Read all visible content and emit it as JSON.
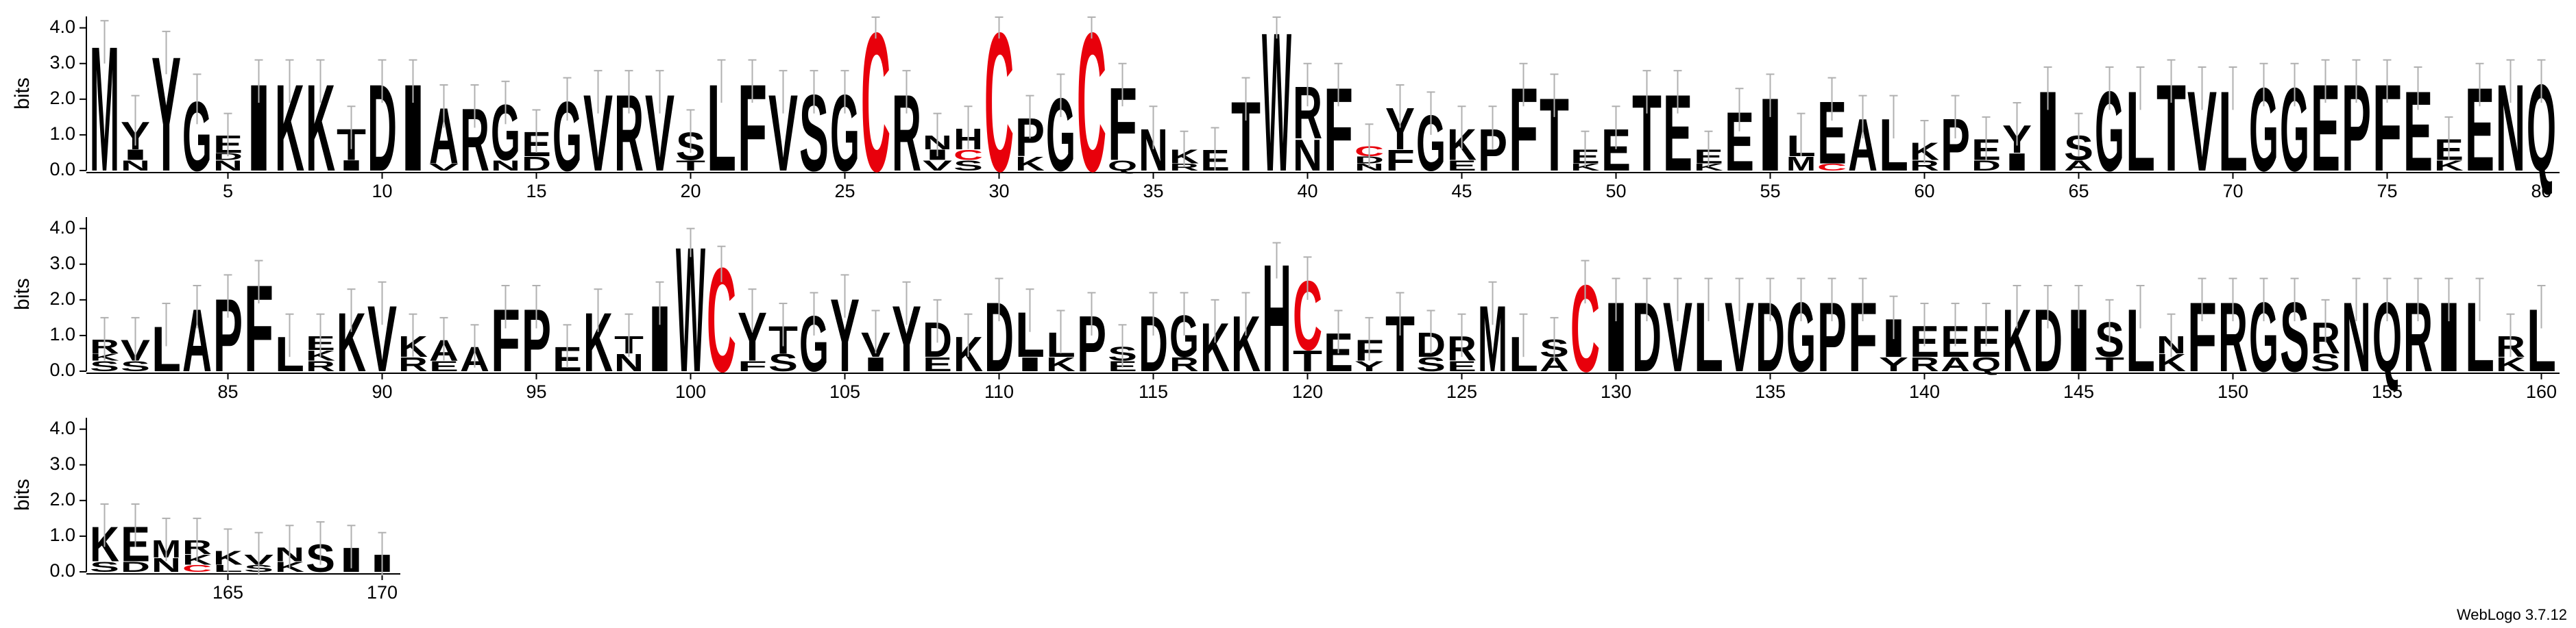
{
  "chart_data": {
    "type": "logo",
    "ylabel": "bits",
    "footer": "WebLogo 3.7.12",
    "ylim": [
      0,
      4.32
    ],
    "yticks": [
      {
        "value": 0,
        "label": "0.0"
      },
      {
        "value": 1,
        "label": "1.0"
      },
      {
        "value": 2,
        "label": "2.0"
      },
      {
        "value": 3,
        "label": "3.0"
      },
      {
        "value": 4,
        "label": "4.0"
      }
    ],
    "xticks": [
      5,
      10,
      15,
      20,
      25,
      30,
      35,
      40,
      45,
      50,
      55,
      60,
      65,
      70,
      75,
      80,
      85,
      90,
      95,
      100,
      105,
      110,
      115,
      120,
      125,
      130,
      135,
      140,
      145,
      150,
      155,
      160,
      165,
      170
    ],
    "color": "#000000",
    "highlight": {
      "letter": "C",
      "color": "#e8000b"
    },
    "error_color": "#b0b0b0",
    "stacks": [
      [
        [
          "M",
          3.6
        ]
      ],
      [
        [
          "N",
          0.3
        ],
        [
          "I",
          0.3
        ],
        [
          "Y",
          0.8
        ]
      ],
      [
        [
          "Y",
          3.3
        ]
      ],
      [
        [
          "G",
          2.0
        ]
      ],
      [
        [
          "N",
          0.3
        ],
        [
          "D",
          0.2
        ],
        [
          "E",
          0.5
        ]
      ],
      [
        [
          "I",
          2.5
        ]
      ],
      [
        [
          "K",
          2.5
        ]
      ],
      [
        [
          "K",
          2.5
        ]
      ],
      [
        [
          "I",
          0.3
        ],
        [
          "T",
          0.9
        ]
      ],
      [
        [
          "D",
          2.5
        ]
      ],
      [
        [
          "I",
          2.5
        ]
      ],
      [
        [
          "V",
          0.2
        ],
        [
          "A",
          1.6
        ]
      ],
      [
        [
          "R",
          1.8
        ]
      ],
      [
        [
          "N",
          0.3
        ],
        [
          "G",
          1.6
        ]
      ],
      [
        [
          "D",
          0.4
        ],
        [
          "E",
          0.7
        ]
      ],
      [
        [
          "G",
          2.0
        ]
      ],
      [
        [
          "V",
          2.2
        ]
      ],
      [
        [
          "R",
          2.2
        ]
      ],
      [
        [
          "V",
          2.2
        ]
      ],
      [
        [
          "T",
          0.3
        ],
        [
          "S",
          0.8
        ]
      ],
      [
        [
          "L",
          2.5
        ]
      ],
      [
        [
          "F",
          2.5
        ]
      ],
      [
        [
          "V",
          2.2
        ]
      ],
      [
        [
          "S",
          2.2
        ]
      ],
      [
        [
          "G",
          2.2
        ]
      ],
      [
        [
          "C",
          4.0
        ]
      ],
      [
        [
          "R",
          2.2
        ]
      ],
      [
        [
          "V",
          0.3
        ],
        [
          "I",
          0.3
        ],
        [
          "N",
          0.4
        ]
      ],
      [
        [
          "S",
          0.3
        ],
        [
          "C",
          0.3
        ],
        [
          "H",
          0.6
        ]
      ],
      [
        [
          "C",
          4.0
        ]
      ],
      [
        [
          "K",
          0.4
        ],
        [
          "P",
          1.1
        ]
      ],
      [
        [
          "G",
          2.1
        ]
      ],
      [
        [
          "C",
          4.0
        ]
      ],
      [
        [
          "Q",
          0.3
        ],
        [
          "F",
          2.1
        ]
      ],
      [
        [
          "N",
          1.2
        ]
      ],
      [
        [
          "R",
          0.2
        ],
        [
          "K",
          0.4
        ]
      ],
      [
        [
          "E",
          0.6
        ]
      ],
      [
        [
          "T",
          2.0
        ]
      ],
      [
        [
          "W",
          4.0
        ]
      ],
      [
        [
          "N",
          0.9
        ],
        [
          "R",
          1.5
        ]
      ],
      [
        [
          "F",
          2.4
        ]
      ],
      [
        [
          "N",
          0.2
        ],
        [
          "D",
          0.2
        ],
        [
          "C",
          0.3
        ]
      ],
      [
        [
          "F",
          0.6
        ],
        [
          "Y",
          1.2
        ]
      ],
      [
        [
          "G",
          1.6
        ]
      ],
      [
        [
          "E",
          0.3
        ],
        [
          "K",
          0.9
        ]
      ],
      [
        [
          "P",
          1.2
        ]
      ],
      [
        [
          "F",
          2.4
        ]
      ],
      [
        [
          "T",
          2.1
        ]
      ],
      [
        [
          "K",
          0.2
        ],
        [
          "E",
          0.4
        ]
      ],
      [
        [
          "E",
          1.2
        ]
      ],
      [
        [
          "T",
          2.2
        ]
      ],
      [
        [
          "E",
          2.2
        ]
      ],
      [
        [
          "K",
          0.2
        ],
        [
          "E",
          0.4
        ]
      ],
      [
        [
          "E",
          1.7
        ]
      ],
      [
        [
          "I",
          2.1
        ]
      ],
      [
        [
          "M",
          0.4
        ],
        [
          "L",
          0.6
        ]
      ],
      [
        [
          "C",
          0.2
        ],
        [
          "E",
          1.8
        ]
      ],
      [
        [
          "A",
          1.5
        ]
      ],
      [
        [
          "L",
          1.5
        ]
      ],
      [
        [
          "R",
          0.3
        ],
        [
          "K",
          0.5
        ]
      ],
      [
        [
          "P",
          1.5
        ]
      ],
      [
        [
          "D",
          0.3
        ],
        [
          "E",
          0.6
        ]
      ],
      [
        [
          "I",
          0.5
        ],
        [
          "Y",
          0.8
        ]
      ],
      [
        [
          "I",
          2.3
        ]
      ],
      [
        [
          "A",
          0.3
        ],
        [
          "S",
          0.7
        ]
      ],
      [
        [
          "G",
          2.3
        ]
      ],
      [
        [
          "L",
          2.3
        ]
      ],
      [
        [
          "T",
          2.5
        ]
      ],
      [
        [
          "V",
          2.3
        ]
      ],
      [
        [
          "L",
          2.3
        ]
      ],
      [
        [
          "G",
          2.4
        ]
      ],
      [
        [
          "G",
          2.4
        ]
      ],
      [
        [
          "E",
          2.5
        ]
      ],
      [
        [
          "P",
          2.5
        ]
      ],
      [
        [
          "F",
          2.5
        ]
      ],
      [
        [
          "E",
          2.3
        ]
      ],
      [
        [
          "K",
          0.3
        ],
        [
          "E",
          0.6
        ]
      ],
      [
        [
          "E",
          2.4
        ]
      ],
      [
        [
          "N",
          2.5
        ]
      ],
      [
        [
          "Q",
          2.5
        ]
      ],
      [
        [
          "S",
          0.3
        ],
        [
          "K",
          0.2
        ],
        [
          "R",
          0.4
        ]
      ],
      [
        [
          "S",
          0.3
        ],
        [
          "V",
          0.6
        ]
      ],
      [
        [
          "L",
          1.3
        ]
      ],
      [
        [
          "A",
          1.8
        ]
      ],
      [
        [
          "P",
          2.1
        ]
      ],
      [
        [
          "F",
          2.5
        ]
      ],
      [
        [
          "L",
          1.0
        ]
      ],
      [
        [
          "R",
          0.3
        ],
        [
          "K",
          0.3
        ],
        [
          "E",
          0.4
        ]
      ],
      [
        [
          "K",
          1.7
        ]
      ],
      [
        [
          "V",
          1.9
        ]
      ],
      [
        [
          "R",
          0.4
        ],
        [
          "K",
          0.6
        ]
      ],
      [
        [
          "E",
          0.3
        ],
        [
          "A",
          0.6
        ]
      ],
      [
        [
          "A",
          0.7
        ]
      ],
      [
        [
          "F",
          1.8
        ]
      ],
      [
        [
          "P",
          1.8
        ]
      ],
      [
        [
          "E",
          0.7
        ]
      ],
      [
        [
          "K",
          1.7
        ]
      ],
      [
        [
          "N",
          0.5
        ],
        [
          "T",
          0.5
        ]
      ],
      [
        [
          "I",
          1.9
        ]
      ],
      [
        [
          "W",
          3.6
        ]
      ],
      [
        [
          "C",
          3.0
        ]
      ],
      [
        [
          "F",
          0.3
        ],
        [
          "Y",
          1.4
        ]
      ],
      [
        [
          "S",
          0.5
        ],
        [
          "T",
          0.8
        ]
      ],
      [
        [
          "G",
          1.6
        ]
      ],
      [
        [
          "Y",
          2.1
        ]
      ],
      [
        [
          "I",
          0.4
        ],
        [
          "V",
          0.7
        ]
      ],
      [
        [
          "Y",
          1.9
        ]
      ],
      [
        [
          "E",
          0.4
        ],
        [
          "D",
          1.0
        ]
      ],
      [
        [
          "K",
          1.0
        ]
      ],
      [
        [
          "D",
          2.0
        ]
      ],
      [
        [
          "I",
          0.4
        ],
        [
          "L",
          1.3
        ]
      ],
      [
        [
          "K",
          0.4
        ],
        [
          "L",
          0.7
        ]
      ],
      [
        [
          "P",
          1.6
        ]
      ],
      [
        [
          "E",
          0.3
        ],
        [
          "S",
          0.4
        ]
      ],
      [
        [
          "D",
          1.6
        ]
      ],
      [
        [
          "R",
          0.4
        ],
        [
          "G",
          1.2
        ]
      ],
      [
        [
          "K",
          1.4
        ]
      ],
      [
        [
          "K",
          1.6
        ]
      ],
      [
        [
          "H",
          3.1
        ]
      ],
      [
        [
          "T",
          0.6
        ],
        [
          "C",
          2.0
        ]
      ],
      [
        [
          "E",
          1.1
        ]
      ],
      [
        [
          "Y",
          0.3
        ],
        [
          "F",
          0.6
        ]
      ],
      [
        [
          "T",
          1.6
        ]
      ],
      [
        [
          "S",
          0.4
        ],
        [
          "D",
          0.7
        ]
      ],
      [
        [
          "E",
          0.3
        ],
        [
          "R",
          0.7
        ]
      ],
      [
        [
          "M",
          1.9
        ]
      ],
      [
        [
          "L",
          1.0
        ]
      ],
      [
        [
          "A",
          0.4
        ],
        [
          "S",
          0.5
        ]
      ],
      [
        [
          "C",
          2.5
        ]
      ],
      [
        [
          "I",
          2.0
        ]
      ],
      [
        [
          "D",
          2.0
        ]
      ],
      [
        [
          "V",
          2.0
        ]
      ],
      [
        [
          "L",
          2.0
        ]
      ],
      [
        [
          "V",
          2.0
        ]
      ],
      [
        [
          "D",
          2.0
        ]
      ],
      [
        [
          "G",
          2.0
        ]
      ],
      [
        [
          "P",
          2.0
        ]
      ],
      [
        [
          "F",
          2.0
        ]
      ],
      [
        [
          "Y",
          0.4
        ],
        [
          "I",
          1.1
        ]
      ],
      [
        [
          "R",
          0.4
        ],
        [
          "E",
          0.9
        ]
      ],
      [
        [
          "A",
          0.4
        ],
        [
          "E",
          0.9
        ]
      ],
      [
        [
          "Q",
          0.4
        ],
        [
          "E",
          0.9
        ]
      ],
      [
        [
          "K",
          1.8
        ]
      ],
      [
        [
          "D",
          1.8
        ]
      ],
      [
        [
          "I",
          1.8
        ]
      ],
      [
        [
          "T",
          0.4
        ],
        [
          "S",
          1.0
        ]
      ],
      [
        [
          "L",
          1.8
        ]
      ],
      [
        [
          "K",
          0.5
        ],
        [
          "N",
          0.5
        ]
      ],
      [
        [
          "F",
          2.0
        ]
      ],
      [
        [
          "R",
          2.0
        ]
      ],
      [
        [
          "G",
          2.0
        ]
      ],
      [
        [
          "S",
          2.0
        ]
      ],
      [
        [
          "S",
          0.5
        ],
        [
          "R",
          0.9
        ]
      ],
      [
        [
          "N",
          2.0
        ]
      ],
      [
        [
          "Q",
          2.0
        ]
      ],
      [
        [
          "R",
          2.0
        ]
      ],
      [
        [
          "I",
          2.0
        ]
      ],
      [
        [
          "L",
          2.0
        ]
      ],
      [
        [
          "K",
          0.4
        ],
        [
          "R",
          0.6
        ]
      ],
      [
        [
          "L",
          1.8
        ]
      ],
      [
        [
          "S",
          0.3
        ],
        [
          "K",
          1.0
        ]
      ],
      [
        [
          "D",
          0.3
        ],
        [
          "E",
          1.0
        ]
      ],
      [
        [
          "N",
          0.4
        ],
        [
          "M",
          0.5
        ]
      ],
      [
        [
          "C",
          0.2
        ],
        [
          "K",
          0.3
        ],
        [
          "R",
          0.4
        ]
      ],
      [
        [
          "L",
          0.2
        ],
        [
          "K",
          0.4
        ]
      ],
      [
        [
          "S",
          0.2
        ],
        [
          "V",
          0.3
        ]
      ],
      [
        [
          "K",
          0.3
        ],
        [
          "N",
          0.4
        ]
      ],
      [
        [
          "S",
          0.8
        ]
      ],
      [
        [
          "I",
          0.7
        ]
      ],
      [
        [
          "I",
          0.5
        ]
      ]
    ],
    "errors": [
      0.6,
      0.7,
      0.6,
      0.7,
      0.6,
      0.6,
      0.6,
      0.6,
      0.6,
      0.6,
      0.6,
      0.6,
      0.6,
      0.6,
      0.6,
      0.6,
      0.6,
      0.6,
      0.6,
      0.6,
      0.6,
      0.6,
      0.6,
      0.6,
      0.6,
      0.3,
      0.6,
      0.6,
      0.6,
      0.3,
      0.6,
      0.6,
      0.3,
      0.6,
      0.6,
      0.5,
      0.6,
      0.6,
      0.3,
      0.6,
      0.6,
      0.6,
      0.6,
      0.6,
      0.6,
      0.6,
      0.6,
      0.6,
      0.5,
      0.6,
      0.6,
      0.6,
      0.5,
      0.6,
      0.6,
      0.6,
      0.6,
      0.6,
      0.6,
      0.6,
      0.6,
      0.6,
      0.6,
      0.6,
      0.6,
      0.6,
      0.6,
      0.6,
      0.6,
      0.6,
      0.6,
      0.6,
      0.6,
      0.6,
      0.6,
      0.6,
      0.6,
      0.6,
      0.6,
      0.6,
      0.6,
      0.6,
      0.6,
      0.6,
      0.6,
      0.6,
      0.6,
      0.6,
      0.6,
      0.6,
      0.6,
      0.6,
      0.6,
      0.6,
      0.6,
      0.6,
      0.6,
      0.6,
      0.6,
      0.4,
      0.5,
      0.6,
      0.6,
      0.6,
      0.6,
      0.6,
      0.6,
      0.6,
      0.6,
      0.6,
      0.6,
      0.6,
      0.6,
      0.6,
      0.6,
      0.6,
      0.6,
      0.6,
      0.5,
      0.6,
      0.6,
      0.6,
      0.6,
      0.6,
      0.6,
      0.6,
      0.6,
      0.6,
      0.6,
      0.6,
      0.6,
      0.6,
      0.6,
      0.6,
      0.6,
      0.6,
      0.6,
      0.6,
      0.6,
      0.6,
      0.6,
      0.6,
      0.6,
      0.6,
      0.6,
      0.6,
      0.6,
      0.6,
      0.6,
      0.6,
      0.6,
      0.6,
      0.6,
      0.6,
      0.6,
      0.6,
      0.6,
      0.6,
      0.6,
      0.6,
      0.6,
      0.6,
      0.6,
      0.6,
      0.6,
      0.6,
      0.6,
      0.6,
      0.6,
      0.6
    ]
  }
}
